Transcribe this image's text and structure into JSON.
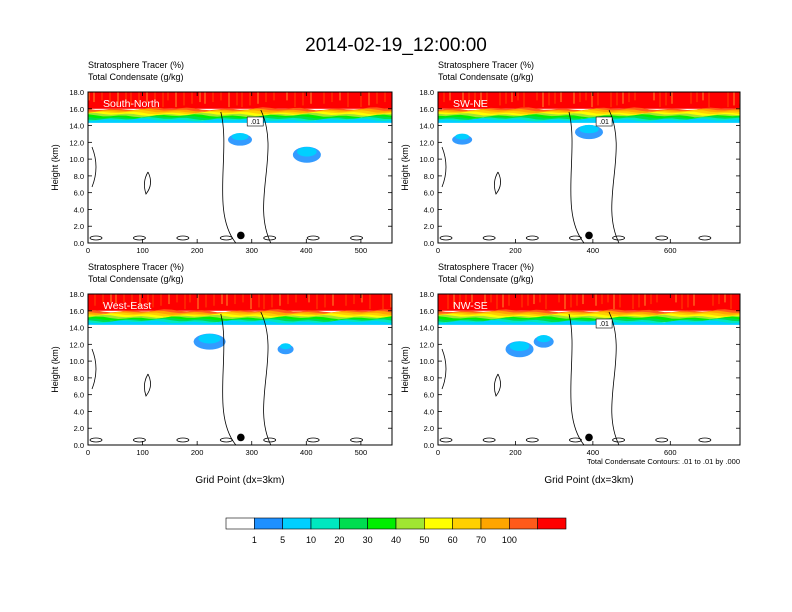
{
  "title": "2014-02-19_12:00:00",
  "colorbar": {
    "colors": [
      "#ffffff",
      "#1e90ff",
      "#00cfff",
      "#00e8c0",
      "#00dd50",
      "#00ee00",
      "#a0e632",
      "#ffff00",
      "#ffd000",
      "#ffa500",
      "#ff5a1a",
      "#ff0000"
    ],
    "labels": [
      "1",
      "5",
      "10",
      "20",
      "30",
      "40",
      "50",
      "60",
      "70",
      "100"
    ]
  },
  "contour_note": "Total Condensate Contours: .01 to .01 by .000",
  "chart_data": [
    {
      "type": "heatmap",
      "header_line1": "Stratosphere Tracer   (%)",
      "header_line2": "Total Condensate   (g/kg)",
      "panel_label": "South-North",
      "ylabel": "Height (km)",
      "xlabel": "",
      "yticks": [
        "0.0",
        "2.0",
        "4.0",
        "6.0",
        "8.0",
        "10.0",
        "12.0",
        "14.0",
        "16.0",
        "18.0"
      ],
      "ylim": [
        0,
        18
      ],
      "xticks": [
        0,
        100,
        200,
        300,
        400,
        500
      ],
      "xlim": [
        0,
        557
      ],
      "tracer_top_layer_base_km": 16.0,
      "tracer_gradient_base_km": 14.5,
      "contour_label": ".01",
      "marker_x": 280
    },
    {
      "type": "heatmap",
      "header_line1": "Stratosphere Tracer   (%)",
      "header_line2": "Total Condensate   (g/kg)",
      "panel_label": "SW-NE",
      "ylabel": "Height (km)",
      "xlabel": "",
      "yticks": [
        "0.0",
        "2.0",
        "4.0",
        "6.0",
        "8.0",
        "10.0",
        "12.0",
        "14.0",
        "16.0",
        "18.0"
      ],
      "ylim": [
        0,
        18
      ],
      "xticks": [
        0,
        200,
        400,
        600
      ],
      "xlim": [
        0,
        780
      ],
      "tracer_top_layer_base_km": 16.0,
      "tracer_gradient_base_km": 14.5,
      "contour_label": ".01",
      "marker_x": 390
    },
    {
      "type": "heatmap",
      "header_line1": "Stratosphere Tracer   (%)",
      "header_line2": "Total Condensate   (g/kg)",
      "panel_label": "West-East",
      "ylabel": "Height (km)",
      "xlabel": "Grid Point (dx=3km)",
      "yticks": [
        "0.0",
        "2.0",
        "4.0",
        "6.0",
        "8.0",
        "10.0",
        "12.0",
        "14.0",
        "16.0",
        "18.0"
      ],
      "ylim": [
        0,
        18
      ],
      "xticks": [
        0,
        100,
        200,
        300,
        400,
        500
      ],
      "xlim": [
        0,
        557
      ],
      "tracer_top_layer_base_km": 16.0,
      "tracer_gradient_base_km": 14.5,
      "contour_label": "",
      "marker_x": 280
    },
    {
      "type": "heatmap",
      "header_line1": "Stratosphere Tracer   (%)",
      "header_line2": "Total Condensate   (g/kg)",
      "panel_label": "NW-SE",
      "ylabel": "Height (km)",
      "xlabel": "Grid Point (dx=3km)",
      "yticks": [
        "0.0",
        "2.0",
        "4.0",
        "6.0",
        "8.0",
        "10.0",
        "12.0",
        "14.0",
        "16.0",
        "18.0"
      ],
      "ylim": [
        0,
        18
      ],
      "xticks": [
        0,
        200,
        400,
        600
      ],
      "xlim": [
        0,
        780
      ],
      "tracer_top_layer_base_km": 16.0,
      "tracer_gradient_base_km": 14.5,
      "contour_label": ".01",
      "marker_x": 390
    }
  ]
}
